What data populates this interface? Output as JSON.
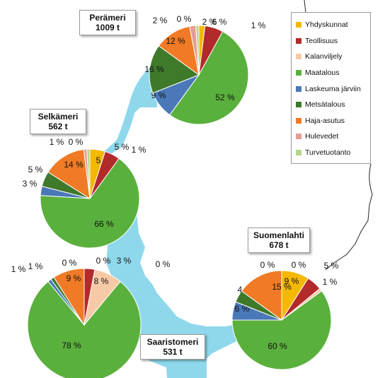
{
  "chart_data": [
    {
      "type": "pie",
      "region": "Perämeri",
      "total": "1009 t",
      "categories": [
        "Yhdyskunnat",
        "Teollisuus",
        "Kalanviljely",
        "Maatalous",
        "Laskeuma järviin",
        "Metsätalous",
        "Haja-asutus",
        "Hulevedet",
        "Turvetuotanto"
      ],
      "values": [
        2,
        6,
        0,
        52,
        9,
        16,
        12,
        2,
        1
      ],
      "labels": [
        "2 %",
        "6 %",
        "0 %",
        "52 %",
        "9 %",
        "16 %",
        "12 %",
        "2 %",
        "1 %"
      ]
    },
    {
      "type": "pie",
      "region": "Selkämeri",
      "total": "562 t",
      "categories": [
        "Yhdyskunnat",
        "Teollisuus",
        "Kalanviljely",
        "Maatalous",
        "Laskeuma järviin",
        "Metsätalous",
        "Haja-asutus",
        "Hulevedet",
        "Turvetuotanto"
      ],
      "values": [
        5,
        5,
        0,
        66,
        3,
        5,
        14,
        1,
        1
      ],
      "labels": [
        "5 %",
        "5 %",
        "0 %",
        "66 %",
        "3 %",
        "5 %",
        "14 %",
        "1 %",
        "1 %"
      ]
    },
    {
      "type": "pie",
      "region": "Saaristomeri",
      "total": "531 t",
      "categories": [
        "Yhdyskunnat",
        "Teollisuus",
        "Kalanviljely",
        "Maatalous",
        "Laskeuma järviin",
        "Metsätalous",
        "Haja-asutus",
        "Hulevedet",
        "Turvetuotanto"
      ],
      "values": [
        0,
        3,
        8,
        78,
        1,
        1,
        9,
        0,
        0
      ],
      "labels": [
        "0 %",
        "3 %",
        "8 %",
        "78 %",
        "1 %",
        "1 %",
        "9 %",
        "0 %",
        "0 %"
      ]
    },
    {
      "type": "pie",
      "region": "Suomenlahti",
      "total": "678 t",
      "categories": [
        "Yhdyskunnat",
        "Teollisuus",
        "Kalanviljely",
        "Maatalous",
        "Laskeuma järviin",
        "Metsätalous",
        "Haja-asutus",
        "Hulevedet",
        "Turvetuotanto"
      ],
      "values": [
        9,
        5,
        1,
        60,
        6,
        4,
        15,
        0,
        0
      ],
      "labels": [
        "9 %",
        "5 %",
        "1 %",
        "60 %",
        "6 %",
        "4 %",
        "15 %",
        "0 %",
        "0 %"
      ]
    }
  ],
  "legend": {
    "items": [
      {
        "label": "Yhdyskunnat",
        "color": "#f5b800"
      },
      {
        "label": "Teollisuus",
        "color": "#b22a2a"
      },
      {
        "label": "Kalanviljely",
        "color": "#f6c9a7"
      },
      {
        "label": "Maatalous",
        "color": "#5ab03c"
      },
      {
        "label": "Laskeuma järviin",
        "color": "#4a78b8"
      },
      {
        "label": "Metsätalous",
        "color": "#3f7a2b"
      },
      {
        "label": "Haja-asutus",
        "color": "#f07a25"
      },
      {
        "label": "Hulevedet",
        "color": "#e59c96"
      },
      {
        "label": "Turvetuotanto",
        "color": "#b4d688"
      }
    ]
  },
  "region_boxes": [
    {
      "name": "Perämeri",
      "total": "1009 t"
    },
    {
      "name": "Selkämeri",
      "total": "562 t"
    },
    {
      "name": "Saaristomeri",
      "total": "531 t"
    },
    {
      "name": "Suomenlahti",
      "total": "678 t"
    }
  ],
  "colors": {
    "sea": "#8fd8ec",
    "land_border": "#222222"
  }
}
